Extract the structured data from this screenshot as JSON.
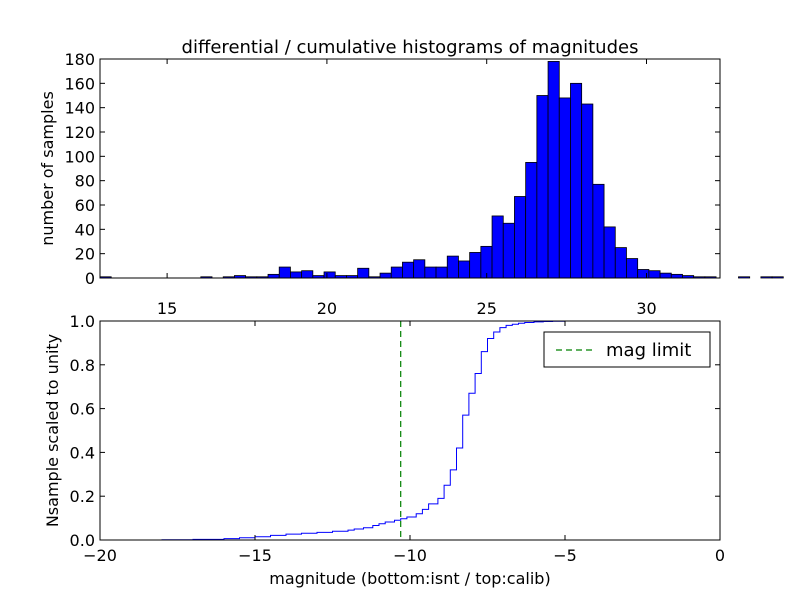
{
  "chart_data": [
    {
      "type": "bar",
      "title": "differential / cumulative histograms of magnitudes",
      "xlabel": "",
      "ylabel": "number of samples",
      "xlim": [
        12.9,
        32.3
      ],
      "ylim": [
        0,
        180
      ],
      "xticks": [
        15,
        20,
        25,
        30
      ],
      "yticks": [
        0,
        20,
        40,
        60,
        80,
        100,
        120,
        140,
        160,
        180
      ],
      "bin_start": 12.9,
      "bin_width": 0.3505,
      "values": [
        1,
        0,
        0,
        0,
        0,
        0,
        0,
        0,
        0,
        1,
        0,
        1,
        2,
        1,
        1,
        3,
        9,
        5,
        6,
        2,
        5,
        2,
        2,
        8,
        1,
        4,
        9,
        13,
        15,
        9,
        9,
        18,
        14,
        21,
        26,
        51,
        45,
        67,
        95,
        150,
        178,
        148,
        160,
        143,
        77,
        42,
        25,
        16,
        7,
        6,
        4,
        3,
        2,
        1,
        1,
        0,
        0,
        1,
        0,
        1,
        1,
        0,
        0,
        0
      ],
      "bar_color": "#0000ff",
      "grid": false
    },
    {
      "type": "line",
      "xlabel": "magnitude (bottom:isnt / top:calib)",
      "ylabel": "Nsample scaled to unity",
      "xlim": [
        -20,
        0
      ],
      "ylim": [
        0,
        1
      ],
      "xticks": [
        -20,
        -15,
        -10,
        -5,
        0
      ],
      "yticks": [
        0.0,
        0.2,
        0.4,
        0.6,
        0.8,
        1.0
      ],
      "series": [
        {
          "color": "#0000ff",
          "step": true,
          "x": [
            -20.0,
            -18.0,
            -17.0,
            -16.0,
            -15.5,
            -15.0,
            -14.5,
            -14.0,
            -13.5,
            -13.0,
            -12.5,
            -12.0,
            -11.8,
            -11.5,
            -11.2,
            -11.0,
            -10.8,
            -10.5,
            -10.3,
            -10.1,
            -9.8,
            -9.6,
            -9.4,
            -9.1,
            -8.9,
            -8.7,
            -8.5,
            -8.3,
            -8.1,
            -7.9,
            -7.7,
            -7.5,
            -7.3,
            -7.1,
            -6.9,
            -6.7,
            -6.5,
            -6.3,
            -6.0,
            -5.7,
            -5.4,
            -5.0,
            -4.0,
            -2.0,
            -0.05,
            0.0
          ],
          "y": [
            0.0,
            0.001,
            0.003,
            0.006,
            0.01,
            0.015,
            0.021,
            0.027,
            0.031,
            0.035,
            0.04,
            0.045,
            0.05,
            0.056,
            0.066,
            0.074,
            0.082,
            0.09,
            0.097,
            0.105,
            0.12,
            0.14,
            0.165,
            0.19,
            0.25,
            0.32,
            0.42,
            0.57,
            0.67,
            0.76,
            0.86,
            0.92,
            0.95,
            0.97,
            0.98,
            0.985,
            0.99,
            0.993,
            0.996,
            0.998,
            0.999,
            1.0,
            1.0,
            1.0,
            1.0,
            0.0
          ]
        },
        {
          "name": "mag limit",
          "color": "#008000",
          "dashed": true,
          "vline_x": -10.3
        }
      ],
      "legend": {
        "label": "mag limit",
        "placement": "top-right"
      },
      "grid": false
    }
  ]
}
